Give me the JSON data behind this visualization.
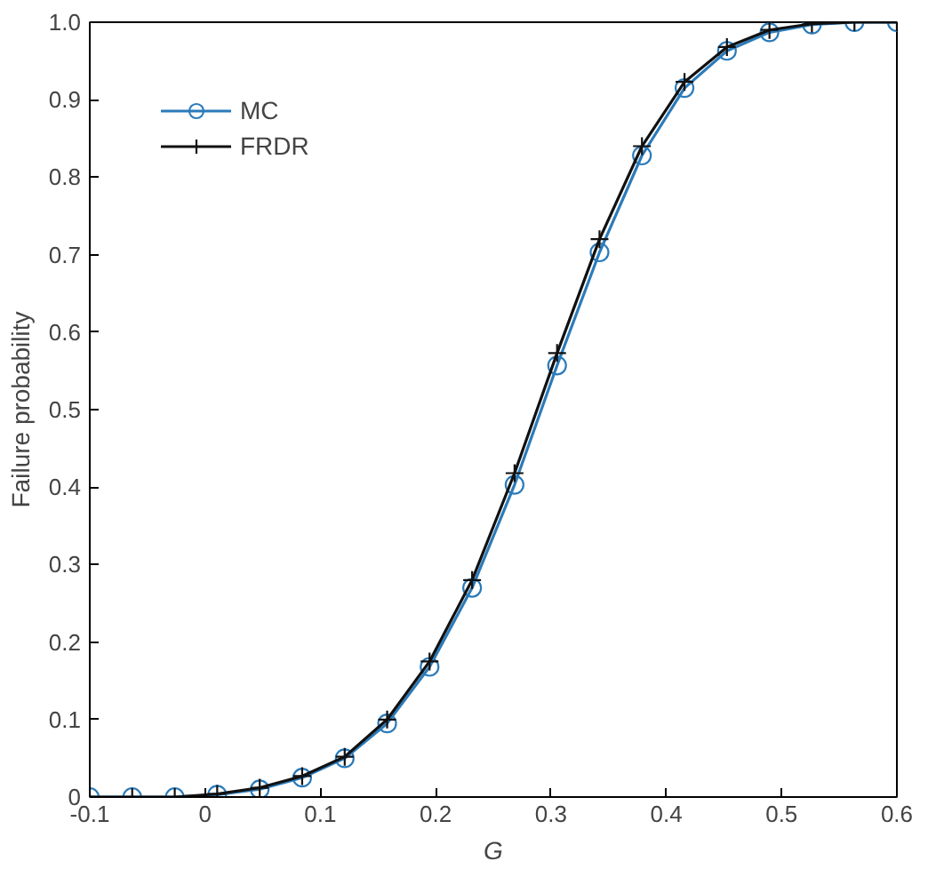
{
  "chart_data": {
    "type": "line",
    "xlabel": "G",
    "ylabel": "Failure probability",
    "x": [
      -0.1,
      -0.0632,
      -0.0263,
      0.0105,
      0.0474,
      0.0842,
      0.1211,
      0.1579,
      0.1947,
      0.2316,
      0.2684,
      0.3053,
      0.3421,
      0.3789,
      0.4158,
      0.4526,
      0.4895,
      0.5263,
      0.5632,
      0.6
    ],
    "series": [
      {
        "name": "MC",
        "color": "#2b7bba",
        "marker": "circle",
        "values": [
          0,
          0,
          0,
          0.003,
          0.01,
          0.025,
          0.05,
          0.095,
          0.168,
          0.27,
          0.403,
          0.557,
          0.703,
          0.828,
          0.915,
          0.963,
          0.987,
          0.997,
          1,
          1
        ]
      },
      {
        "name": "FRDR",
        "color": "#111111",
        "marker": "cross",
        "values": [
          0,
          0,
          0,
          0.004,
          0.012,
          0.027,
          0.052,
          0.1,
          0.175,
          0.28,
          0.418,
          0.573,
          0.72,
          0.84,
          0.923,
          0.968,
          0.99,
          0.998,
          1,
          1
        ]
      }
    ],
    "xlim": [
      -0.1,
      0.6
    ],
    "ylim": [
      0,
      1.0
    ],
    "xticks": [
      -0.1,
      0,
      0.1,
      0.2,
      0.3,
      0.4,
      0.5,
      0.6
    ],
    "yticks": [
      0,
      0.1,
      0.2,
      0.3,
      0.4,
      0.5,
      0.6,
      0.7,
      0.8,
      0.9,
      {
        "value": 1.0,
        "label": "1.0"
      }
    ],
    "grid": false,
    "legend": "top left",
    "line_style": "solid"
  }
}
